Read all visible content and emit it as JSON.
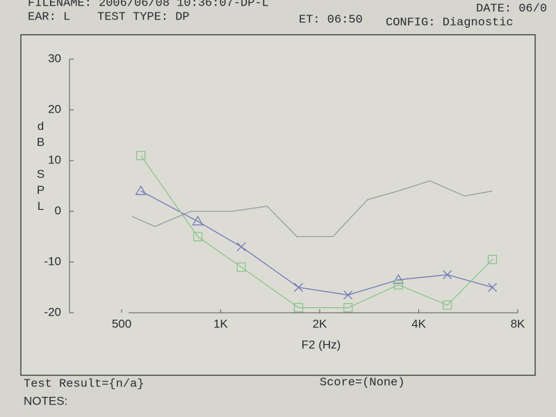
{
  "header": {
    "filename": "FILENAME: 2006/06/08 10:36:07-DP-L",
    "ear": "EAR: L",
    "test_type": "TEST TYPE: DP",
    "et": "ET: 06:50",
    "config": "CONFIG: Diagnostic",
    "date": "DATE: 06/0"
  },
  "chart_data": {
    "type": "line",
    "xlabel": "F2 (Hz)",
    "ylabel": "dB SPL",
    "xscale": "log",
    "xlim": [
      500,
      8000
    ],
    "xticks": [
      500,
      {
        "value": 1000,
        "label": "1K"
      },
      {
        "value": 2000,
        "label": "2K"
      },
      {
        "value": 4000,
        "label": "4K"
      },
      {
        "value": 8000,
        "label": "8K"
      }
    ],
    "ylim": [
      -20,
      30
    ],
    "yticks": [
      30,
      20,
      10,
      0,
      -10,
      -20
    ],
    "series": [
      {
        "color": "#9a9aa4",
        "x": [
          538,
          631,
          812,
          1085,
          1384,
          1706,
          2192,
          2797,
          3469,
          4324,
          5510,
          6700
        ],
        "values": [
          -1,
          -3,
          0,
          0,
          1,
          -5,
          -5,
          2.3,
          4,
          6,
          3,
          4
        ]
      },
      {
        "color": "#7078b8",
        "x": [
          572,
          852,
          1155,
          1725,
          2439,
          3469,
          4885,
          6700
        ],
        "values": [
          4,
          -2,
          -7,
          -15,
          -16.5,
          -13.5,
          -12.5,
          -15
        ],
        "markers": [
          "triangle",
          "triangle",
          "x",
          "x",
          "x",
          "triangle",
          "x",
          "x"
        ]
      },
      {
        "color": "#8cc48c",
        "x": [
          572,
          852,
          1155,
          1725,
          2439,
          3469,
          4885,
          6700
        ],
        "values": [
          11,
          -5,
          -11,
          -19,
          -19,
          -14.5,
          -18.5,
          -9.5
        ],
        "markers": [
          "square",
          "square",
          "square",
          "square",
          "square",
          "square",
          "square",
          "square"
        ]
      }
    ]
  },
  "footer": {
    "test_result": "Test Result={n/a}",
    "score": "Score=(None)",
    "notes": "NOTES:"
  }
}
